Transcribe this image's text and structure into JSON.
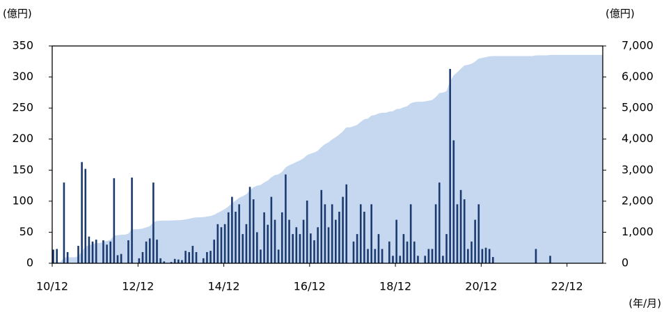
{
  "chart_data": {
    "type": "bar",
    "y_label": "(億円)",
    "y2_label": "(億円)",
    "x_label": "(年/月)",
    "categories": [
      "10/12",
      null,
      null,
      null,
      null,
      null,
      null,
      null,
      null,
      null,
      null,
      null,
      null,
      null,
      null,
      null,
      null,
      null,
      null,
      null,
      null,
      null,
      null,
      null,
      "12/12",
      null,
      null,
      null,
      null,
      null,
      null,
      null,
      null,
      null,
      null,
      null,
      null,
      null,
      null,
      null,
      null,
      null,
      null,
      null,
      null,
      null,
      null,
      null,
      "14/12",
      null,
      null,
      null,
      null,
      null,
      null,
      null,
      null,
      null,
      null,
      null,
      null,
      null,
      null,
      null,
      null,
      null,
      null,
      null,
      null,
      null,
      null,
      null,
      "16/12",
      null,
      null,
      null,
      null,
      null,
      null,
      null,
      null,
      null,
      null,
      null,
      null,
      null,
      null,
      null,
      null,
      null,
      null,
      null,
      null,
      null,
      null,
      null,
      "18/12",
      null,
      null,
      null,
      null,
      null,
      null,
      null,
      null,
      null,
      null,
      null,
      null,
      null,
      null,
      null,
      null,
      null,
      null,
      null,
      null,
      null,
      null,
      null,
      "20/12",
      null,
      null,
      null,
      null,
      null,
      null,
      null,
      null,
      null,
      null,
      null,
      null,
      null,
      null,
      null,
      null,
      null,
      null,
      null,
      null,
      null,
      null,
      null,
      "22/12",
      null,
      null,
      null,
      null,
      null,
      null,
      null,
      null,
      null
    ],
    "series": [
      {
        "type": "area",
        "axis": "y2",
        "color": "#c6d8ef",
        "values": [
          22,
          45,
          45,
          175,
          193,
          193,
          193,
          221,
          384,
          536,
          579,
          614,
          652,
          652,
          689,
          719,
          754,
          891,
          904,
          919,
          919,
          956,
          1094,
          1094,
          1102,
          1120,
          1155,
          1195,
          1325,
          1363,
          1371,
          1374,
          1374,
          1376,
          1383,
          1389,
          1394,
          1414,
          1432,
          1460,
          1478,
          1478,
          1486,
          1504,
          1524,
          1562,
          1625,
          1683,
          1746,
          1828,
          1935,
          2018,
          2113,
          2160,
          2223,
          2346,
          2449,
          2499,
          2521,
          2603,
          2665,
          2772,
          2842,
          2864,
          2946,
          3089,
          3159,
          3206,
          3264,
          3311,
          3381,
          3482,
          3530,
          3567,
          3625,
          3743,
          3838,
          3896,
          3991,
          4061,
          4144,
          4251,
          4378,
          4378,
          4413,
          4460,
          4555,
          4638,
          4661,
          4756,
          4779,
          4826,
          4849,
          4849,
          4884,
          4896,
          4966,
          4978,
          5025,
          5060,
          5155,
          5190,
          5202,
          5202,
          5214,
          5237,
          5260,
          5355,
          5485,
          5497,
          5544,
          5857,
          6055,
          6150,
          6268,
          6371,
          6394,
          6429,
          6499,
          6594,
          6617,
          6642,
          6665,
          6675,
          6675,
          6675,
          6675,
          6675,
          6675,
          6675,
          6675,
          6675,
          6675,
          6675,
          6675,
          6698,
          6698,
          6698,
          6698,
          6710,
          6710,
          6710,
          6710,
          6710,
          6710,
          6710,
          6710,
          6710,
          6710,
          6710,
          6710,
          6710,
          6710,
          6710
        ]
      },
      {
        "type": "bar",
        "color": "#1b3a6f",
        "values": [
          22,
          23,
          0,
          130,
          18,
          0,
          0,
          28,
          163,
          152,
          43,
          35,
          38,
          0,
          37,
          30,
          35,
          137,
          13,
          15,
          0,
          37,
          138,
          0,
          8,
          18,
          35,
          40,
          130,
          38,
          8,
          3,
          0,
          2,
          7,
          6,
          5,
          20,
          18,
          28,
          18,
          0,
          8,
          18,
          20,
          38,
          63,
          58,
          63,
          82,
          107,
          83,
          95,
          47,
          63,
          123,
          103,
          50,
          22,
          82,
          62,
          107,
          70,
          22,
          82,
          143,
          70,
          47,
          58,
          47,
          70,
          101,
          48,
          37,
          58,
          118,
          95,
          58,
          95,
          70,
          83,
          107,
          127,
          0,
          35,
          47,
          95,
          83,
          23,
          95,
          23,
          47,
          23,
          0,
          35,
          12,
          70,
          12,
          47,
          35,
          95,
          35,
          12,
          0,
          12,
          23,
          23,
          95,
          130,
          12,
          47,
          313,
          198,
          95,
          118,
          103,
          23,
          35,
          70,
          95,
          23,
          25,
          23,
          10,
          0,
          0,
          0,
          0,
          0,
          0,
          0,
          0,
          0,
          0,
          0,
          23,
          0,
          0,
          0,
          12,
          0,
          0,
          0,
          0,
          0,
          0,
          0,
          0,
          0,
          0,
          0,
          0,
          0,
          0
        ]
      }
    ],
    "ylim": [
      0,
      350
    ],
    "yticks": [
      0,
      50,
      100,
      150,
      200,
      250,
      300,
      350
    ],
    "y2lim": [
      0,
      7000
    ],
    "y2ticks": [
      0,
      {
        "value": 1000,
        "label": "1,000"
      },
      {
        "value": 2000,
        "label": "2,000"
      },
      {
        "value": 3000,
        "label": "3,000"
      },
      {
        "value": 4000,
        "label": "4,000"
      },
      {
        "value": 5000,
        "label": "5,000"
      },
      {
        "value": 6000,
        "label": "6,000"
      },
      {
        "value": 7000,
        "label": "7,000"
      }
    ]
  }
}
